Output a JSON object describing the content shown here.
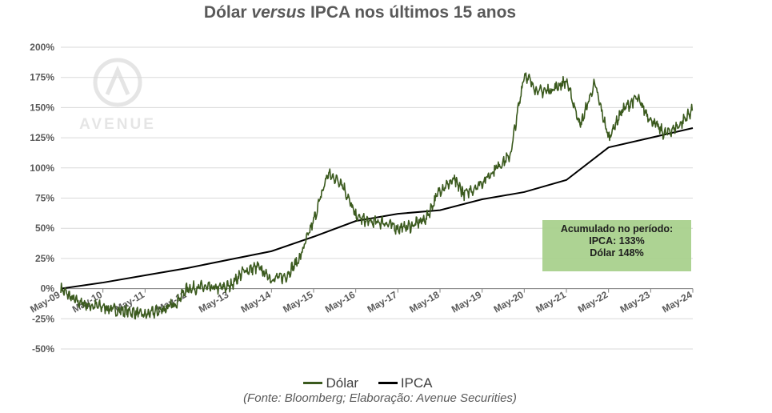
{
  "title": {
    "prefix": "Dólar ",
    "italic": "versus",
    "suffix": " IPCA nos últimos 15 anos"
  },
  "source": "(Fonte: Bloomberg; Elaboração: Avenue Securities)",
  "watermark": {
    "text": "AVENUE"
  },
  "annotation": {
    "line1": "Acumulado no período:",
    "line2": "IPCA: 133%",
    "line3": "Dólar 148%"
  },
  "colors": {
    "dolar": "#3b5a1e",
    "ipca": "#000000",
    "annotation_bg": "#a9d18e",
    "grid": "#d9d9d9"
  },
  "legend": [
    {
      "label": "Dólar"
    },
    {
      "label": "IPCA"
    }
  ],
  "chart_data": {
    "type": "line",
    "title": "Dólar versus IPCA nos últimos 15 anos",
    "xlabel": "",
    "ylabel": "",
    "ylim": [
      -50,
      200
    ],
    "y_ticks": [
      "200%",
      "175%",
      "150%",
      "125%",
      "100%",
      "75%",
      "50%",
      "25%",
      "0%",
      "-25%",
      "-50%"
    ],
    "x_ticks": [
      "May-09",
      "May-10",
      "May-11",
      "May-12",
      "May-13",
      "May-14",
      "May-15",
      "May-16",
      "May-17",
      "May-18",
      "May-19",
      "May-20",
      "May-21",
      "May-22",
      "May-23",
      "May-24"
    ],
    "grid": true,
    "legend_position": "bottom",
    "series": [
      {
        "name": "Dólar",
        "x": [
          "2009-05",
          "2009-09",
          "2010-01",
          "2010-05",
          "2010-09",
          "2011-01",
          "2011-05",
          "2011-09",
          "2012-01",
          "2012-05",
          "2012-09",
          "2013-01",
          "2013-05",
          "2013-09",
          "2014-01",
          "2014-05",
          "2014-09",
          "2015-01",
          "2015-05",
          "2015-09",
          "2016-01",
          "2016-05",
          "2016-09",
          "2017-01",
          "2017-05",
          "2017-09",
          "2018-01",
          "2018-05",
          "2018-09",
          "2018-12",
          "2019-05",
          "2019-09",
          "2020-01",
          "2020-05",
          "2020-09",
          "2021-01",
          "2021-05",
          "2021-09",
          "2022-01",
          "2022-05",
          "2022-09",
          "2023-01",
          "2023-05",
          "2023-09",
          "2024-01",
          "2024-05"
        ],
        "values": [
          0,
          -10,
          -14,
          -15,
          -18,
          -19,
          -22,
          -18,
          -14,
          0,
          1,
          0,
          2,
          14,
          18,
          8,
          10,
          25,
          56,
          95,
          88,
          60,
          55,
          55,
          50,
          52,
          58,
          82,
          90,
          78,
          88,
          100,
          110,
          178,
          163,
          165,
          172,
          135,
          170,
          125,
          148,
          158,
          140,
          128,
          135,
          148
        ]
      },
      {
        "name": "IPCA",
        "x": [
          "2009-05",
          "2010-05",
          "2011-05",
          "2012-05",
          "2013-05",
          "2014-05",
          "2015-05",
          "2016-05",
          "2017-05",
          "2018-05",
          "2019-05",
          "2020-05",
          "2021-05",
          "2022-05",
          "2023-05",
          "2024-05"
        ],
        "values": [
          0,
          5,
          11,
          17,
          24,
          31,
          43,
          56,
          62,
          65,
          74,
          80,
          90,
          117,
          125,
          133
        ]
      }
    ]
  }
}
